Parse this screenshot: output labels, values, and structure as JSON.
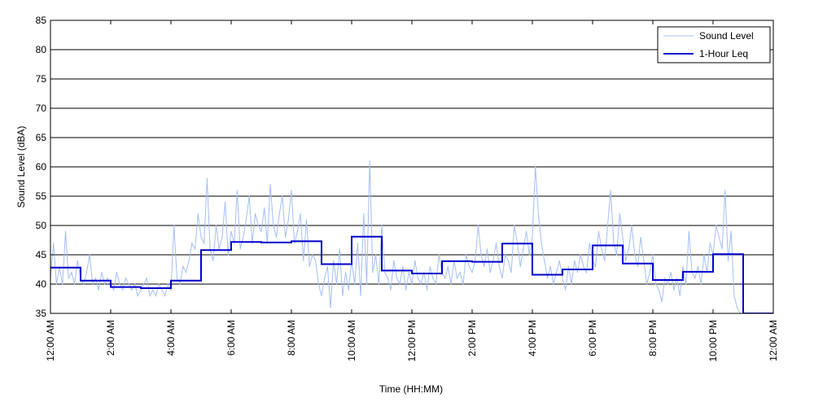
{
  "chart_data": {
    "type": "line",
    "title": "",
    "xlabel": "Time (HH:MM)",
    "ylabel": "Sound Level (dBA)",
    "ylim": [
      35,
      85
    ],
    "xlim": [
      0,
      24
    ],
    "yticks": [
      35,
      40,
      45,
      50,
      55,
      60,
      65,
      70,
      75,
      80,
      85
    ],
    "grid": "horizontal",
    "legend_position": "top-right",
    "xticks": [
      {
        "hour": 0,
        "label": "12:00 AM"
      },
      {
        "hour": 2,
        "label": "2:00 AM"
      },
      {
        "hour": 4,
        "label": "4:00 AM"
      },
      {
        "hour": 6,
        "label": "6:00 AM"
      },
      {
        "hour": 8,
        "label": "8:00 AM"
      },
      {
        "hour": 10,
        "label": "10:00 AM"
      },
      {
        "hour": 12,
        "label": "12:00 PM"
      },
      {
        "hour": 14,
        "label": "2:00 PM"
      },
      {
        "hour": 16,
        "label": "4:00 PM"
      },
      {
        "hour": 18,
        "label": "6:00 PM"
      },
      {
        "hour": 20,
        "label": "8:00 PM"
      },
      {
        "hour": 22,
        "label": "10:00 PM"
      },
      {
        "hour": 24,
        "label": "12:00 AM"
      }
    ],
    "series": [
      {
        "name": "Sound Level",
        "color": "#a4bff5",
        "style": "thin-line",
        "x": [
          0.0,
          0.1,
          0.2,
          0.3,
          0.4,
          0.5,
          0.6,
          0.7,
          0.8,
          0.9,
          1.0,
          1.1,
          1.2,
          1.3,
          1.4,
          1.5,
          1.6,
          1.7,
          1.8,
          1.9,
          2.0,
          2.1,
          2.2,
          2.3,
          2.4,
          2.5,
          2.6,
          2.7,
          2.8,
          2.9,
          3.0,
          3.1,
          3.2,
          3.3,
          3.4,
          3.5,
          3.6,
          3.7,
          3.8,
          3.9,
          4.0,
          4.1,
          4.2,
          4.3,
          4.4,
          4.5,
          4.6,
          4.7,
          4.8,
          4.9,
          5.0,
          5.1,
          5.2,
          5.3,
          5.4,
          5.5,
          5.6,
          5.7,
          5.8,
          5.9,
          6.0,
          6.1,
          6.2,
          6.3,
          6.4,
          6.5,
          6.6,
          6.7,
          6.8,
          6.9,
          7.0,
          7.1,
          7.2,
          7.3,
          7.4,
          7.5,
          7.6,
          7.7,
          7.8,
          7.9,
          8.0,
          8.1,
          8.2,
          8.3,
          8.4,
          8.5,
          8.6,
          8.7,
          8.8,
          8.9,
          9.0,
          9.1,
          9.2,
          9.3,
          9.4,
          9.5,
          9.6,
          9.7,
          9.8,
          9.9,
          10.0,
          10.1,
          10.2,
          10.3,
          10.4,
          10.5,
          10.6,
          10.7,
          10.8,
          10.9,
          11.0,
          11.1,
          11.2,
          11.3,
          11.4,
          11.5,
          11.6,
          11.7,
          11.8,
          11.9,
          12.0,
          12.1,
          12.2,
          12.3,
          12.4,
          12.5,
          12.6,
          12.7,
          12.8,
          12.9,
          13.0,
          13.1,
          13.2,
          13.3,
          13.4,
          13.5,
          13.6,
          13.7,
          13.8,
          13.9,
          14.0,
          14.1,
          14.2,
          14.3,
          14.4,
          14.5,
          14.6,
          14.7,
          14.8,
          14.9,
          15.0,
          15.1,
          15.2,
          15.3,
          15.4,
          15.5,
          15.6,
          15.7,
          15.8,
          15.9,
          16.0,
          16.1,
          16.2,
          16.3,
          16.4,
          16.5,
          16.6,
          16.7,
          16.8,
          16.9,
          17.0,
          17.1,
          17.2,
          17.3,
          17.4,
          17.5,
          17.6,
          17.7,
          17.8,
          17.9,
          18.0,
          18.1,
          18.2,
          18.3,
          18.4,
          18.5,
          18.6,
          18.7,
          18.8,
          18.9,
          19.0,
          19.1,
          19.2,
          19.3,
          19.4,
          19.5,
          19.6,
          19.7,
          19.8,
          19.9,
          20.0,
          20.1,
          20.2,
          20.3,
          20.4,
          20.5,
          20.6,
          20.7,
          20.8,
          20.9,
          21.0,
          21.1,
          21.2,
          21.3,
          21.4,
          21.5,
          21.6,
          21.7,
          21.8,
          21.9,
          22.0,
          22.1,
          22.2,
          22.3,
          22.4,
          22.5,
          22.6,
          22.7,
          22.8,
          22.9,
          23.0,
          23.1,
          23.2,
          23.3,
          23.4,
          23.5,
          23.6,
          23.7,
          23.8,
          23.9
        ],
        "values": [
          41,
          47,
          40,
          43,
          40,
          49,
          41,
          42,
          40,
          44,
          41,
          40,
          42,
          45,
          40,
          41,
          39,
          42,
          40,
          41,
          40,
          39,
          42,
          40,
          39,
          41,
          40,
          39,
          40,
          38,
          39,
          40,
          41,
          38,
          39,
          38,
          40,
          39,
          38,
          40,
          39,
          50,
          41,
          40,
          43,
          42,
          44,
          47,
          46,
          52,
          48,
          47,
          58,
          46,
          44,
          50,
          46,
          48,
          54,
          45,
          49,
          47,
          56,
          46,
          48,
          51,
          55,
          47,
          52,
          50,
          49,
          53,
          47,
          57,
          50,
          48,
          52,
          55,
          48,
          51,
          56,
          47,
          49,
          52,
          44,
          51,
          43,
          45,
          44,
          40,
          38,
          41,
          43,
          36,
          44,
          40,
          46,
          38,
          42,
          39,
          44,
          40,
          47,
          38,
          52,
          40,
          61,
          42,
          45,
          40,
          50,
          42,
          41,
          39,
          44,
          41,
          40,
          43,
          39,
          42,
          40,
          44,
          41,
          40,
          42,
          39,
          43,
          41,
          40,
          45,
          42,
          41,
          43,
          40,
          44,
          41,
          42,
          40,
          45,
          43,
          42,
          44,
          50,
          45,
          43,
          46,
          42,
          44,
          47,
          43,
          41,
          45,
          44,
          42,
          50,
          47,
          43,
          46,
          49,
          45,
          48,
          60,
          52,
          47,
          44,
          41,
          43,
          40,
          42,
          44,
          41,
          39,
          43,
          40,
          44,
          42,
          45,
          43,
          42,
          47,
          44,
          43,
          49,
          46,
          44,
          50,
          56,
          47,
          45,
          52,
          48,
          44,
          46,
          50,
          45,
          43,
          48,
          44,
          40,
          42,
          45,
          40,
          39,
          37,
          41,
          40,
          42,
          39,
          41,
          38,
          43,
          40,
          49,
          42,
          41,
          43,
          40,
          45,
          42,
          47,
          45,
          50,
          48,
          46,
          56,
          44,
          49,
          38,
          36,
          35,
          35,
          35,
          35,
          35,
          35,
          35,
          35,
          35,
          35,
          35
        ]
      },
      {
        "name": "1-Hour Leq",
        "color": "#0000cc",
        "style": "step",
        "x": [
          0,
          1,
          2,
          3,
          4,
          5,
          6,
          7,
          8,
          9,
          10,
          11,
          12,
          13,
          14,
          15,
          16,
          17,
          18,
          19,
          20,
          21,
          22,
          23,
          24
        ],
        "values": [
          42.8,
          40.6,
          39.5,
          39.3,
          40.6,
          45.8,
          47.2,
          47.1,
          47.3,
          43.4,
          48.1,
          42.3,
          41.8,
          43.9,
          43.8,
          46.9,
          41.6,
          42.5,
          46.6,
          43.5,
          40.7,
          42.1,
          45.1,
          33.0,
          33.0
        ]
      }
    ]
  }
}
